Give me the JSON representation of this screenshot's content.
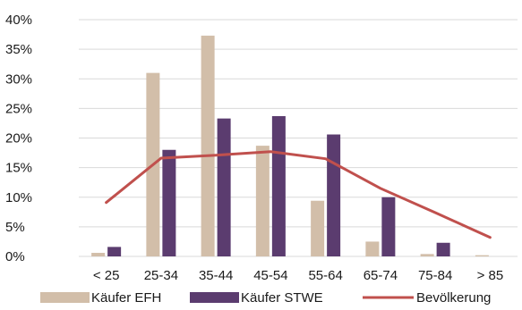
{
  "chart_data": {
    "type": "bar",
    "categories": [
      "< 25",
      "25-34",
      "35-44",
      "45-54",
      "55-64",
      "65-74",
      "75-84",
      "> 85"
    ],
    "series": [
      {
        "name": "Käufer EFH",
        "type": "bar",
        "color": "#d2bea9",
        "values": [
          0.6,
          31.0,
          37.3,
          18.7,
          9.4,
          2.5,
          0.4,
          0.2
        ]
      },
      {
        "name": "Käufer STWE",
        "type": "bar",
        "color": "#5b3c6f",
        "values": [
          1.6,
          18.0,
          23.3,
          23.7,
          20.6,
          10.0,
          2.3,
          0.0
        ]
      },
      {
        "name": "Bevölkerung",
        "type": "line",
        "color": "#c0504d",
        "values": [
          9.1,
          16.6,
          17.1,
          17.7,
          16.5,
          11.5,
          7.4,
          3.2
        ]
      }
    ],
    "ylim": [
      0,
      40
    ],
    "yticks": [
      "0%",
      "5%",
      "10%",
      "15%",
      "20%",
      "25%",
      "30%",
      "35%",
      "40%"
    ],
    "grid": true,
    "legend": "bottom",
    "title": "",
    "xlabel": "",
    "ylabel": ""
  }
}
